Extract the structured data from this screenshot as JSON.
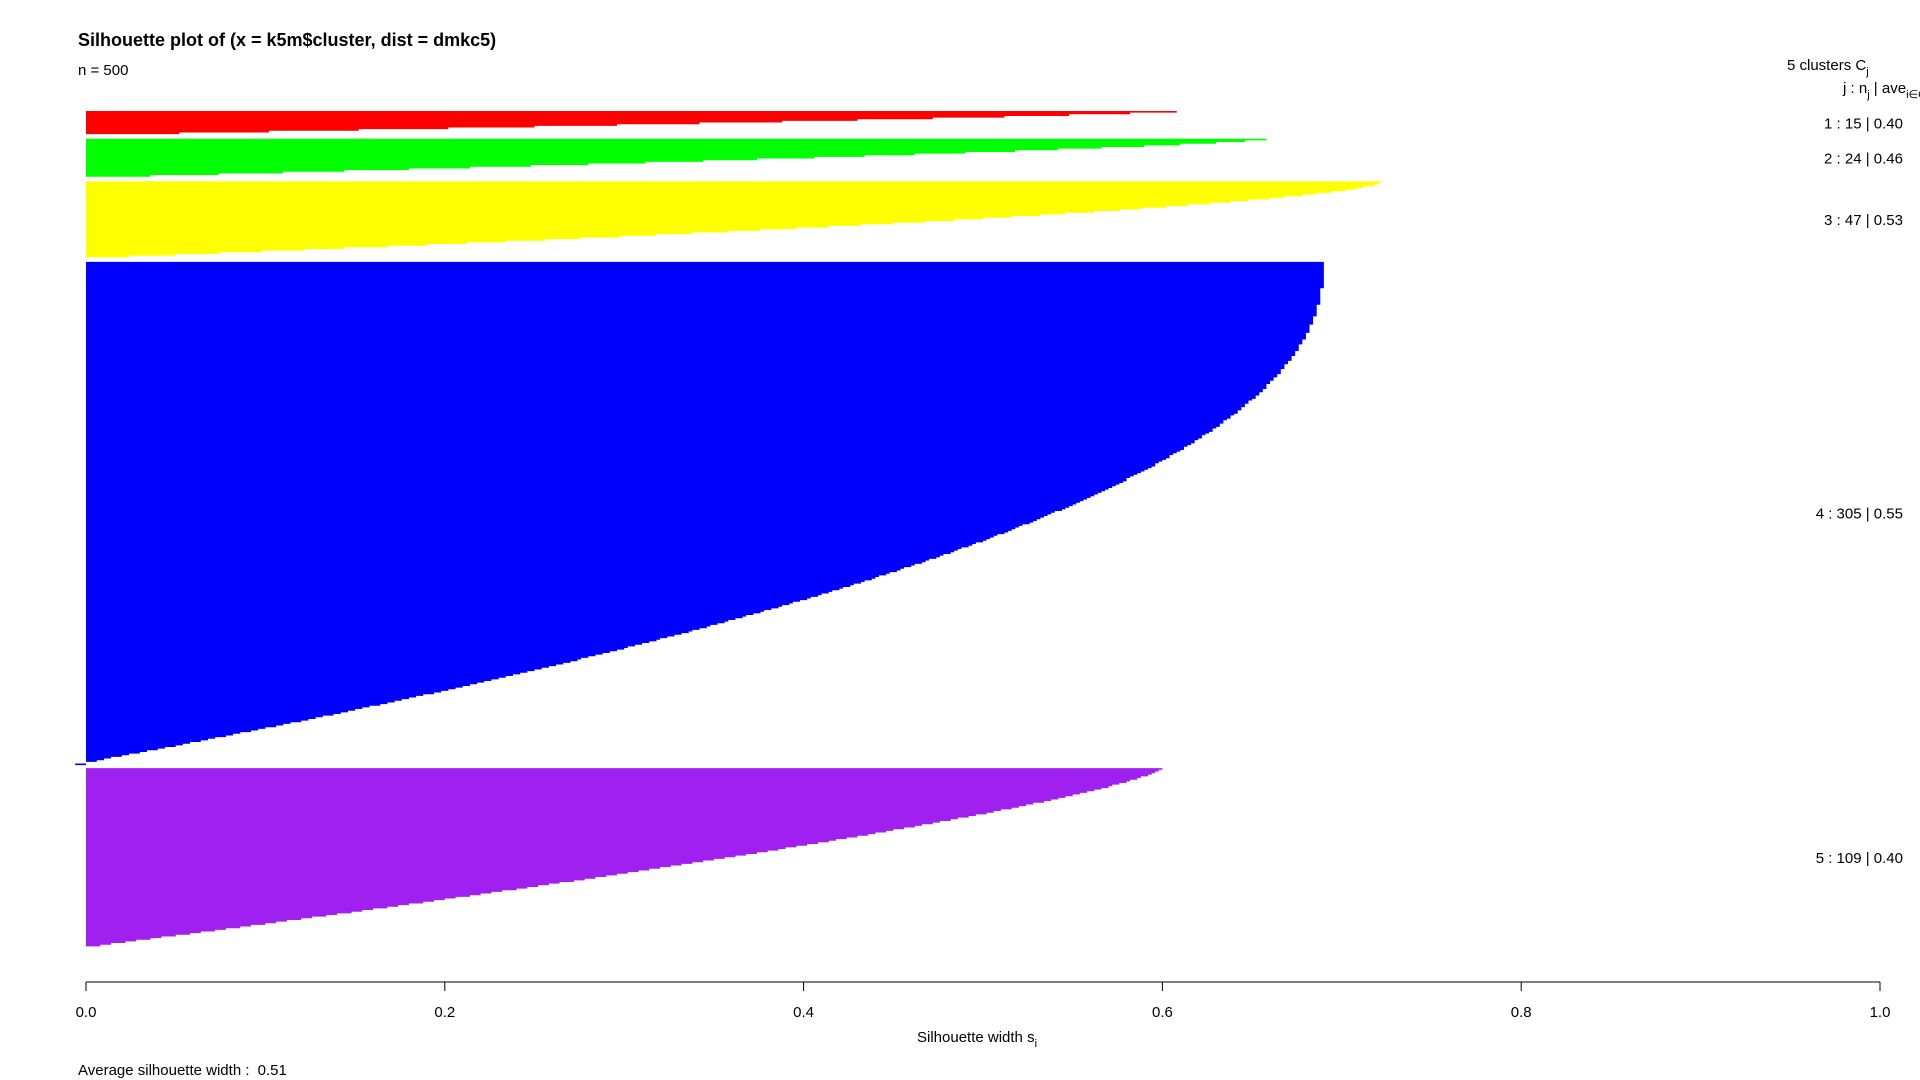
{
  "chart_data": {
    "type": "bar",
    "orientation": "horizontal",
    "title": "Silhouette plot of (x = k5m$cluster, dist = dmkc5)",
    "subtitle": "n = 500",
    "xlabel": "Silhouette width s",
    "xlabel_sub": "i",
    "xlim": [
      0,
      1
    ],
    "xticks": [
      "0.0",
      "0.2",
      "0.4",
      "0.6",
      "0.8",
      "1.0"
    ],
    "footer_label": "Average silhouette width : ",
    "footer_value": "0.51",
    "legend": {
      "header": "5  clusters  C",
      "header_sub": "j",
      "subheader_pre": "j :  n",
      "subheader_sub_j": "j",
      "subheader_mid": " | ave",
      "subheader_sub_ie": "i∈Cj",
      "position": "right"
    },
    "clusters": [
      {
        "label": "1 :   15  |  0.40",
        "cluster": 1,
        "n": 15,
        "avg": 0.4,
        "color": "#ff0000",
        "max": 0.607,
        "min": 0.0,
        "shape": 1.2
      },
      {
        "label": "2 :   24  |  0.46",
        "cluster": 2,
        "n": 24,
        "avg": 0.46,
        "color": "#00ff00",
        "max": 0.657,
        "min": 0.0,
        "shape": 1.3
      },
      {
        "label": "3 :   47  |  0.53",
        "cluster": 3,
        "n": 47,
        "avg": 0.53,
        "color": "#ffff00",
        "max": 0.722,
        "min": 0.0,
        "shape": 1.6
      },
      {
        "label": "4 :  305  |  0.55",
        "cluster": 4,
        "n": 305,
        "avg": 0.55,
        "color": "#0000ff",
        "max": 0.69,
        "min": -0.005,
        "shape": 2.2
      },
      {
        "label": "5 :  109  |  0.40",
        "cluster": 5,
        "n": 109,
        "avg": 0.4,
        "color": "#a020f0",
        "max": 0.6,
        "min": 0.0,
        "shape": 1.3
      }
    ]
  }
}
